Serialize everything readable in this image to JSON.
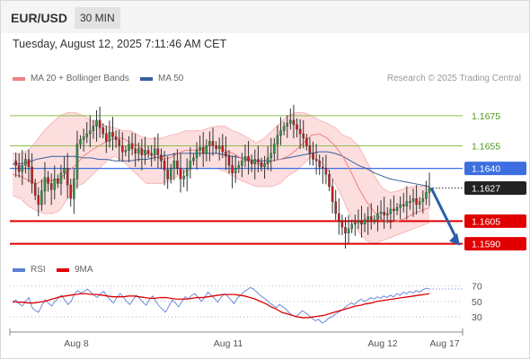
{
  "header": {
    "pair": "EUR/USD",
    "timeframe": "30 MIN"
  },
  "datetime": "Tuesday, August 12, 2025 7:11:46 AM CET",
  "legend_main": [
    {
      "label": "MA 20 + Bollinger Bands",
      "color": "#f08080"
    },
    {
      "label": "MA 50",
      "color": "#3a5f9e"
    }
  ],
  "credit": "Research © 2025 Trading Central",
  "legend_rsi": [
    {
      "label": "RSI",
      "color": "#5b7fd6"
    },
    {
      "label": "9MA",
      "color": "#e00000"
    }
  ],
  "chart_data": [
    {
      "type": "candlestick",
      "title": "",
      "x_tick_labels": [
        "Aug 8",
        "Aug 11",
        "Aug 12",
        "Aug 17"
      ],
      "ylim": [
        1.1582,
        1.1694
      ],
      "levels": [
        {
          "value": "1.1675",
          "kind": "target",
          "color": "#8cc04a",
          "text_color": "#4a9a1a"
        },
        {
          "value": "1.1655",
          "kind": "target",
          "color": "#8cc04a",
          "text_color": "#4a9a1a"
        },
        {
          "value": "1.1640",
          "kind": "pivot",
          "color": "#3d6fe0",
          "text_color": "#ffffff"
        },
        {
          "value": "1.1627",
          "kind": "last_price",
          "color": "#222222",
          "text_color": "#ffffff"
        },
        {
          "value": "1.1605",
          "kind": "support",
          "color": "#e00000",
          "text_color": "#ffffff"
        },
        {
          "value": "1.1590",
          "kind": "support",
          "color": "#e00000",
          "text_color": "#ffffff"
        }
      ],
      "price_path": [
        1.1645,
        1.1642,
        1.1638,
        1.1642,
        1.1646,
        1.1641,
        1.163,
        1.1622,
        1.1616,
        1.1625,
        1.1634,
        1.163,
        1.1626,
        1.1633,
        1.163,
        1.1637,
        1.164,
        1.1629,
        1.162,
        1.1633,
        1.1656,
        1.1659,
        1.1661,
        1.1663,
        1.1665,
        1.1668,
        1.1672,
        1.1667,
        1.1663,
        1.1658,
        1.1664,
        1.1661,
        1.1659,
        1.1655,
        1.1651,
        1.1652,
        1.1656,
        1.1653,
        1.165,
        1.1653,
        1.1649,
        1.1652,
        1.165,
        1.1649,
        1.1653,
        1.1649,
        1.1645,
        1.1639,
        1.1633,
        1.164,
        1.1645,
        1.164,
        1.1633,
        1.1635,
        1.164,
        1.1645,
        1.1647,
        1.1652,
        1.1654,
        1.165,
        1.1655,
        1.1658,
        1.1655,
        1.1653,
        1.1655,
        1.1651,
        1.1648,
        1.1642,
        1.1637,
        1.164,
        1.1642,
        1.1645,
        1.1648,
        1.1645,
        1.1643,
        1.1646,
        1.1644,
        1.1641,
        1.1643,
        1.1647,
        1.165,
        1.1656,
        1.1662,
        1.1665,
        1.1668,
        1.167,
        1.1672,
        1.1669,
        1.1666,
        1.1663,
        1.166,
        1.1655,
        1.165,
        1.1646,
        1.1645,
        1.1641,
        1.164,
        1.1636,
        1.1628,
        1.1618,
        1.161,
        1.1605,
        1.1601,
        1.1597,
        1.16,
        1.1603,
        1.1604,
        1.1605,
        1.1603,
        1.1606,
        1.1608,
        1.1606,
        1.1606,
        1.161,
        1.1611,
        1.1609,
        1.161,
        1.1613,
        1.1612,
        1.1614,
        1.1616,
        1.1615,
        1.1618,
        1.1618,
        1.162,
        1.1616,
        1.1618,
        1.162,
        1.1624,
        1.1627
      ],
      "ma20": [
        1.1636,
        1.1635,
        1.1632,
        1.163,
        1.1632,
        1.1632,
        1.1633,
        1.1638,
        1.1642,
        1.1648,
        1.1652,
        1.1655,
        1.1658,
        1.166,
        1.166,
        1.1657,
        1.1655,
        1.165,
        1.1648,
        1.1646,
        1.1647,
        1.165,
        1.1652,
        1.1652,
        1.1653,
        1.1655,
        1.1655,
        1.1652,
        1.165,
        1.1647,
        1.1645,
        1.1643,
        1.1643,
        1.1645,
        1.1646,
        1.1648,
        1.1652,
        1.1657,
        1.1662,
        1.1663,
        1.166,
        1.1655,
        1.1648,
        1.1638,
        1.1627,
        1.1618,
        1.1611,
        1.1606,
        1.1604,
        1.1605,
        1.1607,
        1.161,
        1.1612,
        1.1614
      ],
      "bb_upper": [
        1.165,
        1.165,
        1.1652,
        1.1658,
        1.1665,
        1.167,
        1.1675,
        1.1677,
        1.1677,
        1.1675,
        1.1672,
        1.167,
        1.1668,
        1.1667,
        1.1665,
        1.1665,
        1.1662,
        1.166,
        1.166,
        1.166,
        1.1662,
        1.1663,
        1.1665,
        1.1665,
        1.1665,
        1.1667,
        1.1668,
        1.1668,
        1.1665,
        1.1663,
        1.166,
        1.1657,
        1.166,
        1.1665,
        1.167,
        1.1675,
        1.1677,
        1.1677,
        1.1675,
        1.1672,
        1.167,
        1.1667,
        1.1662,
        1.166,
        1.1655,
        1.1645,
        1.1635,
        1.1627,
        1.1624,
        1.1625,
        1.1627,
        1.1628,
        1.1628,
        1.1628
      ],
      "bb_lower": [
        1.1622,
        1.162,
        1.1615,
        1.1612,
        1.161,
        1.161,
        1.1612,
        1.162,
        1.1628,
        1.163,
        1.1635,
        1.164,
        1.1645,
        1.1648,
        1.1645,
        1.164,
        1.1635,
        1.163,
        1.163,
        1.163,
        1.1632,
        1.1635,
        1.1638,
        1.164,
        1.164,
        1.164,
        1.164,
        1.1638,
        1.1635,
        1.1632,
        1.163,
        1.1628,
        1.1628,
        1.1628,
        1.163,
        1.1635,
        1.1638,
        1.1643,
        1.1648,
        1.1645,
        1.164,
        1.163,
        1.162,
        1.1608,
        1.1598,
        1.1592,
        1.159,
        1.1592,
        1.1594,
        1.1596,
        1.1598,
        1.16,
        1.1602,
        1.1604
      ],
      "ma50": [
        1.1643,
        1.1643,
        1.1644,
        1.1646,
        1.1647,
        1.1648,
        1.1648,
        1.1648,
        1.1648,
        1.1647,
        1.1647,
        1.1646,
        1.1646,
        1.1645,
        1.1645,
        1.1645,
        1.1646,
        1.1646,
        1.1647,
        1.1648,
        1.1649,
        1.165,
        1.165,
        1.165,
        1.165,
        1.165,
        1.165,
        1.1649,
        1.1648,
        1.1647,
        1.1646,
        1.1645,
        1.1645,
        1.1645,
        1.1646,
        1.1647,
        1.1648,
        1.1649,
        1.165,
        1.1651,
        1.1651,
        1.165,
        1.1648,
        1.1645,
        1.1642,
        1.164,
        1.1637,
        1.1635,
        1.1633,
        1.1632,
        1.1631,
        1.163,
        1.1629,
        1.1628
      ],
      "projection": {
        "from": 1.1627,
        "to": 1.159
      }
    },
    {
      "type": "line",
      "title": "",
      "ylim": [
        15,
        80
      ],
      "y_tick_labels": [
        "70",
        "50",
        "30"
      ],
      "y_ticks": [
        70,
        50,
        30
      ],
      "series": [
        {
          "name": "RSI",
          "color": "#5b7fd6",
          "values": [
            48,
            52,
            47,
            44,
            50,
            55,
            42,
            38,
            36,
            45,
            52,
            48,
            44,
            50,
            54,
            58,
            52,
            46,
            50,
            60,
            64,
            61,
            63,
            66,
            62,
            58,
            55,
            60,
            63,
            57,
            52,
            48,
            55,
            60,
            56,
            50,
            46,
            52,
            58,
            54,
            49,
            45,
            52,
            57,
            50,
            44,
            40,
            36,
            44,
            52,
            48,
            43,
            50,
            56,
            53,
            58,
            60,
            55,
            50,
            55,
            62,
            58,
            54,
            49,
            55,
            60,
            57,
            52,
            47,
            54,
            58,
            62,
            65,
            68,
            66,
            62,
            58,
            55,
            52,
            48,
            45,
            42,
            46,
            43,
            40,
            35,
            32,
            30,
            34,
            38,
            35,
            32,
            28,
            25,
            27,
            22,
            24,
            28,
            30,
            33,
            36,
            38,
            42,
            45,
            48,
            46,
            50,
            53,
            50,
            52,
            55,
            53,
            56,
            54,
            57,
            55,
            58,
            56,
            60,
            58,
            62,
            60,
            63,
            61,
            64,
            62,
            65,
            67,
            66
          ]
        },
        {
          "name": "9MA",
          "color": "#e00000",
          "values": [
            50,
            49,
            49,
            48,
            48,
            49,
            50,
            52,
            54,
            56,
            57,
            58,
            59,
            60,
            60,
            59,
            59,
            58,
            57,
            56,
            56,
            56,
            57,
            57,
            56,
            55,
            54,
            54,
            55,
            55,
            54,
            53,
            53,
            53,
            54,
            55,
            55,
            56,
            57,
            58,
            59,
            59,
            59,
            58,
            57,
            55,
            53,
            50,
            47,
            43,
            40,
            36,
            34,
            32,
            30,
            29,
            29,
            30,
            31,
            32,
            34,
            36,
            38,
            40,
            42,
            44,
            45,
            47,
            48,
            50,
            51,
            52,
            53,
            54,
            55,
            56,
            57,
            58,
            59,
            60
          ]
        }
      ]
    }
  ]
}
